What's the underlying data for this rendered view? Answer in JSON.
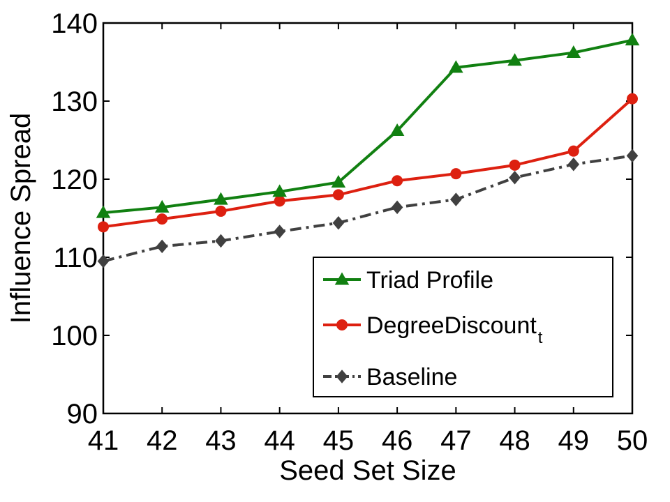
{
  "chart_data": {
    "type": "line",
    "title": "",
    "xlabel": "Seed Set Size",
    "ylabel": "Influence Spread",
    "x": [
      41,
      42,
      43,
      44,
      45,
      46,
      47,
      48,
      49,
      50
    ],
    "xlim": [
      41,
      50
    ],
    "ylim": [
      90,
      140
    ],
    "yticks": [
      90,
      100,
      110,
      120,
      130,
      140
    ],
    "xticks": [
      41,
      42,
      43,
      44,
      45,
      46,
      47,
      48,
      49,
      50
    ],
    "grid": false,
    "legend_position": "bottom-right",
    "series": [
      {
        "name": "Triad Profile",
        "color": "#118011",
        "marker": "triangle",
        "linestyle": "solid",
        "values": [
          115.7,
          116.4,
          117.4,
          118.4,
          119.6,
          126.2,
          134.3,
          135.2,
          136.2,
          137.8
        ]
      },
      {
        "name": "DegreeDiscount",
        "name_subscript": "t",
        "color": "#dd2010",
        "marker": "circle",
        "linestyle": "solid",
        "values": [
          113.9,
          114.9,
          115.9,
          117.2,
          118.0,
          119.8,
          120.7,
          121.8,
          123.6,
          130.3
        ]
      },
      {
        "name": "Baseline",
        "color": "#404040",
        "marker": "diamond",
        "linestyle": "dashdot",
        "values": [
          109.5,
          111.4,
          112.1,
          113.3,
          114.4,
          116.4,
          117.4,
          120.2,
          121.9,
          123.0
        ]
      }
    ]
  }
}
